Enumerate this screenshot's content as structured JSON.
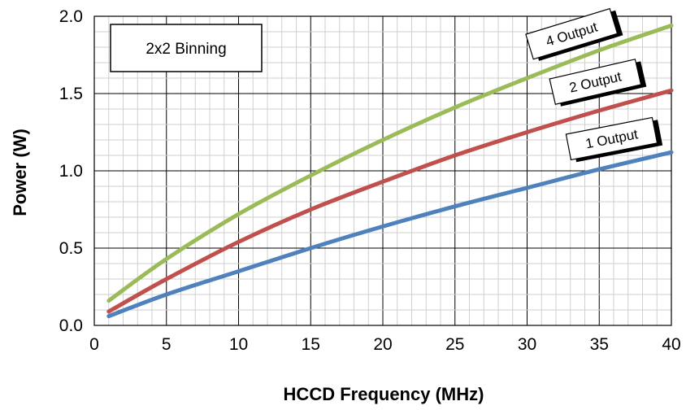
{
  "chart_data": {
    "type": "line",
    "title": "",
    "xlabel": "HCCD Frequency (MHz)",
    "ylabel": "Power  (W)",
    "xlim": [
      0,
      40
    ],
    "ylim": [
      0,
      2.0
    ],
    "x_ticks": [
      "0",
      "5",
      "10",
      "15",
      "20",
      "25",
      "30",
      "35",
      "40"
    ],
    "y_ticks": [
      "0.0",
      "0.5",
      "1.0",
      "1.5",
      "2.0"
    ],
    "grid": true,
    "annotation": "2x2 Binning",
    "series": [
      {
        "name": "4 Output",
        "color": "#9BBB59",
        "x": [
          1,
          5,
          10,
          15,
          20,
          25,
          30,
          35,
          40
        ],
        "values": [
          0.16,
          0.43,
          0.72,
          0.97,
          1.2,
          1.41,
          1.6,
          1.78,
          1.94
        ]
      },
      {
        "name": "2 Output",
        "color": "#C0504D",
        "x": [
          1,
          5,
          10,
          15,
          20,
          25,
          30,
          35,
          40
        ],
        "values": [
          0.09,
          0.3,
          0.54,
          0.75,
          0.93,
          1.1,
          1.25,
          1.39,
          1.52
        ]
      },
      {
        "name": "1 Output",
        "color": "#4F81BD",
        "x": [
          1,
          5,
          10,
          15,
          20,
          25,
          30,
          35,
          40
        ],
        "values": [
          0.06,
          0.2,
          0.35,
          0.5,
          0.64,
          0.77,
          0.89,
          1.01,
          1.12
        ]
      }
    ]
  }
}
